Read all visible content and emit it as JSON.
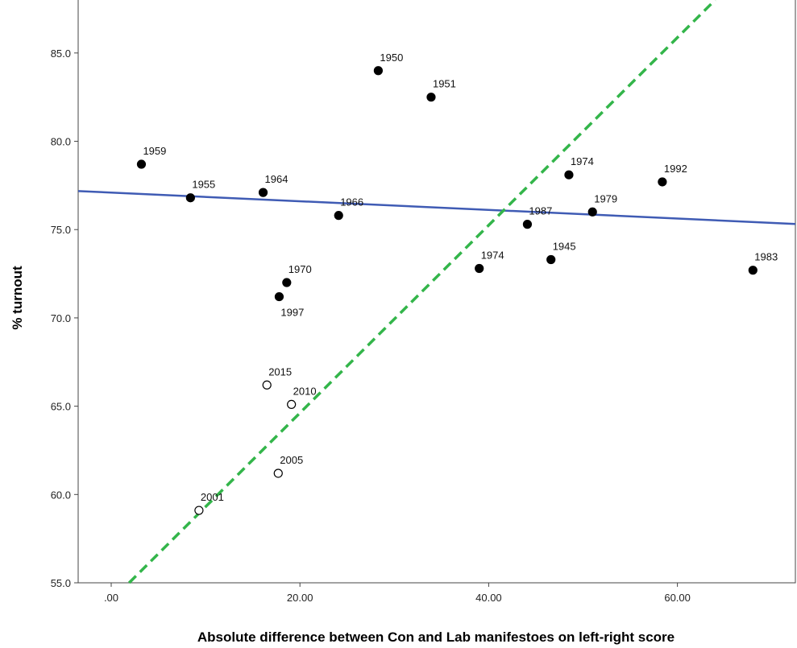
{
  "chart_data": {
    "type": "scatter",
    "xlabel": "Absolute difference between Con and Lab manifestoes on left-right score",
    "ylabel": "% turnout",
    "xlim": [
      -3.5,
      72.5
    ],
    "ylim": [
      55.0,
      88.0
    ],
    "x_ticks": [
      0,
      20,
      40,
      60
    ],
    "x_tick_labels": [
      ".00",
      "20.00",
      "40.00",
      "60.00"
    ],
    "y_ticks": [
      55,
      60,
      65,
      70,
      75,
      80,
      85
    ],
    "y_tick_labels": [
      "55.0",
      "60.0",
      "65.0",
      "70.0",
      "75.0",
      "80.0",
      "85.0"
    ],
    "grid": false,
    "points": [
      {
        "label": "1950",
        "x": 28.3,
        "y": 84.0,
        "filled": true
      },
      {
        "label": "1951",
        "x": 33.9,
        "y": 82.5,
        "filled": true
      },
      {
        "label": "1959",
        "x": 3.2,
        "y": 78.7,
        "filled": true
      },
      {
        "label": "1955",
        "x": 8.4,
        "y": 76.8,
        "filled": true
      },
      {
        "label": "1964",
        "x": 16.1,
        "y": 77.1,
        "filled": true
      },
      {
        "label": "1966",
        "x": 24.1,
        "y": 75.8,
        "filled": true
      },
      {
        "label": "1974",
        "x": 48.5,
        "y": 78.1,
        "filled": true
      },
      {
        "label": "1992",
        "x": 58.4,
        "y": 77.7,
        "filled": true
      },
      {
        "label": "1979",
        "x": 51.0,
        "y": 76.0,
        "filled": true
      },
      {
        "label": "1987",
        "x": 44.1,
        "y": 75.3,
        "filled": true
      },
      {
        "label": "1974",
        "x": 39.0,
        "y": 72.8,
        "filled": true
      },
      {
        "label": "1945",
        "x": 46.6,
        "y": 73.3,
        "filled": true
      },
      {
        "label": "1983",
        "x": 68.0,
        "y": 72.7,
        "filled": true
      },
      {
        "label": "1970",
        "x": 18.6,
        "y": 72.0,
        "filled": true
      },
      {
        "label": "1997",
        "x": 17.8,
        "y": 71.2,
        "filled": true
      },
      {
        "label": "2015",
        "x": 16.5,
        "y": 66.2,
        "filled": false
      },
      {
        "label": "2010",
        "x": 19.1,
        "y": 65.1,
        "filled": false
      },
      {
        "label": "2005",
        "x": 17.7,
        "y": 61.2,
        "filled": false
      },
      {
        "label": "2001",
        "x": 9.3,
        "y": 59.1,
        "filled": false
      }
    ],
    "fit_lines": [
      {
        "style": "solid",
        "color": "#3f5bb4",
        "points": [
          [
            -3.5,
            77.18
          ],
          [
            72.5,
            75.32
          ]
        ]
      },
      {
        "style": "dashed",
        "color": "#33b54a",
        "points": [
          [
            1.9,
            55.0
          ],
          [
            64.0,
            88.0
          ]
        ]
      }
    ]
  }
}
